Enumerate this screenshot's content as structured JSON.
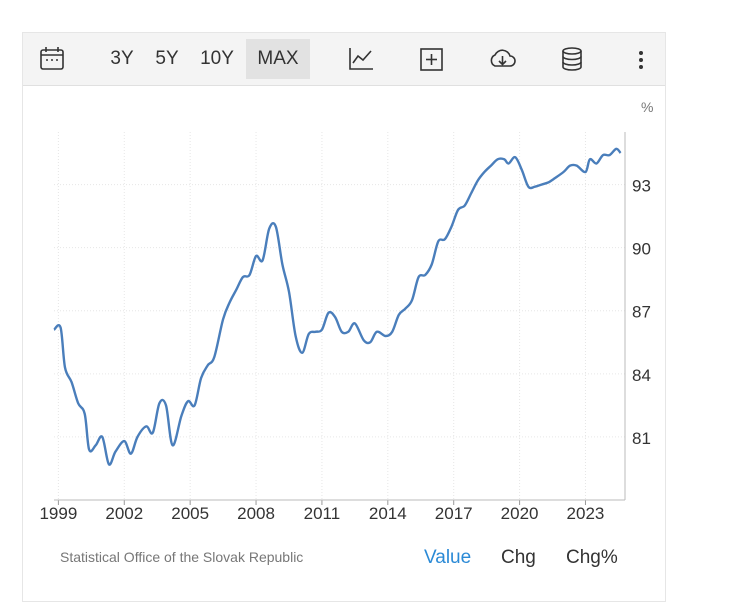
{
  "toolbar": {
    "ranges": [
      "3Y",
      "5Y",
      "10Y",
      "MAX"
    ],
    "active_range": "MAX",
    "icons": [
      "calendar-icon",
      "line-chart-icon",
      "add-icon",
      "download-cloud-icon",
      "database-icon",
      "more-vertical-icon"
    ]
  },
  "chart_data": {
    "type": "line",
    "unit": "%",
    "ylim": [
      78.0,
      95.5
    ],
    "xlim": [
      1998.8,
      2024.8
    ],
    "yticks": [
      81,
      84,
      87,
      90,
      93
    ],
    "xticks": [
      1999,
      2002,
      2005,
      2008,
      2011,
      2014,
      2017,
      2020,
      2023
    ],
    "grid": true,
    "line_color": "#4a7ebb",
    "series": [
      {
        "points": [
          [
            1998.8,
            86.1
          ],
          [
            1999.1,
            86.2
          ],
          [
            1999.3,
            84.3
          ],
          [
            1999.6,
            83.6
          ],
          [
            1999.9,
            82.6
          ],
          [
            2000.2,
            82.1
          ],
          [
            2000.4,
            80.4
          ],
          [
            2000.7,
            80.6
          ],
          [
            2001.0,
            81.0
          ],
          [
            2001.3,
            79.7
          ],
          [
            2001.6,
            80.3
          ],
          [
            2002.0,
            80.8
          ],
          [
            2002.3,
            80.2
          ],
          [
            2002.6,
            81.0
          ],
          [
            2003.0,
            81.5
          ],
          [
            2003.3,
            81.2
          ],
          [
            2003.6,
            82.6
          ],
          [
            2003.9,
            82.5
          ],
          [
            2004.2,
            80.6
          ],
          [
            2004.6,
            82.0
          ],
          [
            2004.9,
            82.7
          ],
          [
            2005.2,
            82.5
          ],
          [
            2005.5,
            83.8
          ],
          [
            2005.8,
            84.4
          ],
          [
            2006.1,
            84.8
          ],
          [
            2006.5,
            86.6
          ],
          [
            2006.8,
            87.4
          ],
          [
            2007.1,
            88.0
          ],
          [
            2007.4,
            88.6
          ],
          [
            2007.7,
            88.7
          ],
          [
            2008.0,
            89.6
          ],
          [
            2008.3,
            89.4
          ],
          [
            2008.6,
            90.9
          ],
          [
            2008.9,
            91.0
          ],
          [
            2009.2,
            89.2
          ],
          [
            2009.5,
            87.9
          ],
          [
            2009.8,
            85.8
          ],
          [
            2010.1,
            85.0
          ],
          [
            2010.4,
            85.9
          ],
          [
            2010.7,
            86.0
          ],
          [
            2011.0,
            86.1
          ],
          [
            2011.3,
            86.9
          ],
          [
            2011.6,
            86.7
          ],
          [
            2011.9,
            86.0
          ],
          [
            2012.2,
            86.0
          ],
          [
            2012.5,
            86.4
          ],
          [
            2012.9,
            85.6
          ],
          [
            2013.2,
            85.5
          ],
          [
            2013.5,
            86.0
          ],
          [
            2013.9,
            85.8
          ],
          [
            2014.2,
            86.0
          ],
          [
            2014.5,
            86.8
          ],
          [
            2014.8,
            87.1
          ],
          [
            2015.1,
            87.5
          ],
          [
            2015.4,
            88.6
          ],
          [
            2015.7,
            88.7
          ],
          [
            2016.0,
            89.2
          ],
          [
            2016.3,
            90.3
          ],
          [
            2016.6,
            90.4
          ],
          [
            2016.9,
            91.0
          ],
          [
            2017.2,
            91.8
          ],
          [
            2017.5,
            92.0
          ],
          [
            2017.8,
            92.6
          ],
          [
            2018.1,
            93.2
          ],
          [
            2018.4,
            93.6
          ],
          [
            2018.7,
            93.9
          ],
          [
            2019.0,
            94.2
          ],
          [
            2019.3,
            94.2
          ],
          [
            2019.5,
            94.0
          ],
          [
            2019.8,
            94.3
          ],
          [
            2020.1,
            93.7
          ],
          [
            2020.4,
            92.9
          ],
          [
            2020.7,
            92.9
          ],
          [
            2021.0,
            93.0
          ],
          [
            2021.3,
            93.1
          ],
          [
            2021.6,
            93.3
          ],
          [
            2022.0,
            93.6
          ],
          [
            2022.3,
            93.9
          ],
          [
            2022.6,
            93.9
          ],
          [
            2023.0,
            93.6
          ],
          [
            2023.2,
            94.2
          ],
          [
            2023.5,
            94.0
          ],
          [
            2023.8,
            94.4
          ],
          [
            2024.1,
            94.4
          ],
          [
            2024.4,
            94.7
          ],
          [
            2024.6,
            94.5
          ]
        ]
      }
    ]
  },
  "footer": {
    "source": "Statistical Office of the Slovak Republic",
    "tabs": [
      "Value",
      "Chg",
      "Chg%"
    ],
    "active_tab": "Value"
  }
}
